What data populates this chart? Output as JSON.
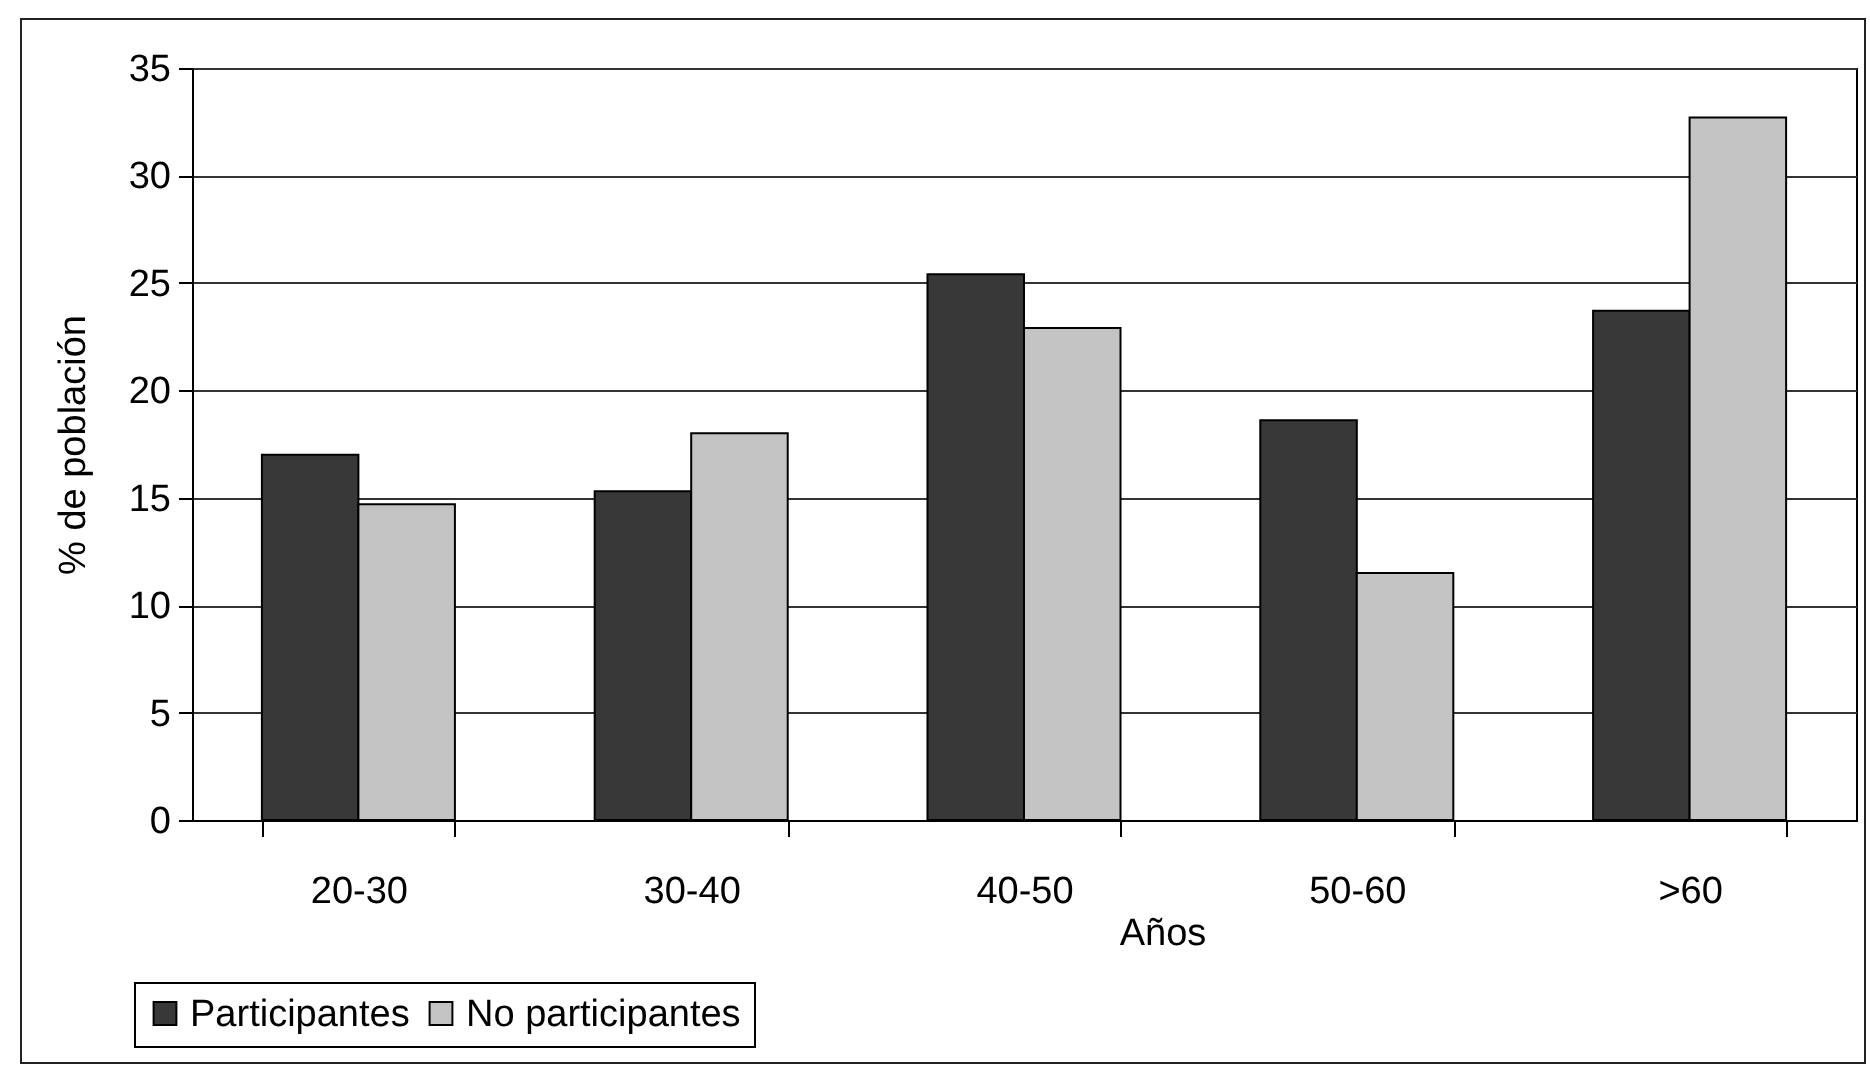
{
  "chart_data": {
    "type": "bar",
    "xlabel": "Años",
    "ylabel": "% de población",
    "categories": [
      "20-30",
      "30-40",
      "40-50",
      "50-60",
      ">60"
    ],
    "series": [
      {
        "name": "Participantes",
        "color": "#383838",
        "values": [
          17.0,
          15.3,
          25.4,
          18.6,
          23.7
        ]
      },
      {
        "name": "No participantes",
        "color": "#c4c4c4",
        "values": [
          14.7,
          18.0,
          22.9,
          11.5,
          32.7
        ]
      }
    ],
    "ylim": [
      0,
      35
    ],
    "yticks": [
      0,
      5,
      10,
      15,
      20,
      25,
      30,
      35
    ],
    "grid": "y",
    "legend": "bottom left"
  }
}
